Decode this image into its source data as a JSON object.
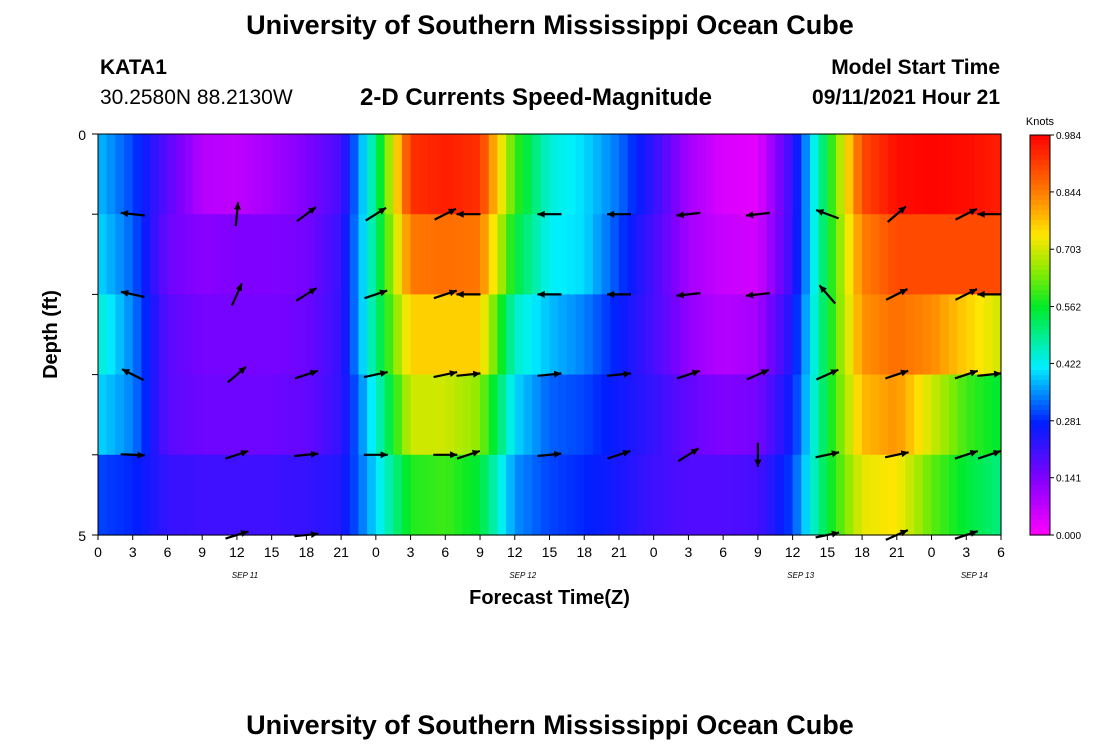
{
  "header": {
    "title": "University of Southern Mississippi Ocean Cube",
    "station": "KATA1",
    "coords": "30.2580N  88.2130W",
    "subtitle": "2-D Currents Speed-Magnitude",
    "model_label": "Model Start Time",
    "model_time": "09/11/2021 Hour 21",
    "footer_title": "University of Southern Mississippi Ocean Cube"
  },
  "chart_data": {
    "type": "heatmap",
    "title": "2-D Currents Speed-Magnitude",
    "xlabel": "Forecast Time(Z)",
    "ylabel": "Depth (ft)",
    "x_unit": "hours from Sep 11 00Z",
    "xlim": [
      0,
      78
    ],
    "ylim": [
      0,
      5
    ],
    "y_tick_labels": [
      {
        "label": "0",
        "depth": 0
      },
      {
        "label": "5",
        "depth": 5
      }
    ],
    "x_tick_labels": [
      "0",
      "3",
      "6",
      "9",
      "12",
      "15",
      "18",
      "21",
      "0",
      "3",
      "6",
      "9",
      "12",
      "15",
      "18",
      "21",
      "0",
      "3",
      "6",
      "9",
      "12",
      "15",
      "18",
      "21",
      "0",
      "3",
      "6"
    ],
    "x_date_labels": [
      {
        "label": "SEP 11",
        "hour": 12
      },
      {
        "label": "SEP 12",
        "hour": 36
      },
      {
        "label": "SEP 13",
        "hour": 60
      },
      {
        "label": "SEP 14",
        "hour": 75
      }
    ],
    "colorbar": {
      "unit": "Knots",
      "min": 0.0,
      "max": 0.984,
      "ticks": [
        "0.984",
        "0.844",
        "0.703",
        "0.562",
        "0.422",
        "0.281",
        "0.141",
        "0.000"
      ]
    },
    "x_hours": [
      0,
      3,
      6,
      9,
      12,
      15,
      18,
      21,
      24,
      27,
      30,
      33,
      36,
      39,
      42,
      45,
      48,
      51,
      54,
      57,
      60,
      63,
      66,
      69,
      72,
      75,
      78
    ],
    "depth_rows": [
      0.5,
      1.5,
      2.5,
      3.5,
      4.5
    ],
    "speed_knots": [
      [
        0.38,
        0.3,
        0.18,
        0.08,
        0.07,
        0.1,
        0.14,
        0.2,
        0.5,
        0.93,
        0.95,
        0.93,
        0.6,
        0.44,
        0.4,
        0.33,
        0.22,
        0.1,
        0.04,
        0.03,
        0.22,
        0.55,
        0.9,
        0.97,
        0.98,
        0.97,
        0.95
      ],
      [
        0.4,
        0.32,
        0.16,
        0.13,
        0.14,
        0.14,
        0.15,
        0.22,
        0.5,
        0.85,
        0.86,
        0.85,
        0.55,
        0.42,
        0.4,
        0.3,
        0.2,
        0.1,
        0.06,
        0.05,
        0.22,
        0.55,
        0.84,
        0.9,
        0.9,
        0.9,
        0.9
      ],
      [
        0.45,
        0.34,
        0.18,
        0.15,
        0.15,
        0.15,
        0.16,
        0.22,
        0.5,
        0.76,
        0.76,
        0.76,
        0.45,
        0.38,
        0.34,
        0.27,
        0.2,
        0.12,
        0.08,
        0.1,
        0.25,
        0.55,
        0.82,
        0.86,
        0.83,
        0.76,
        0.7
      ],
      [
        0.4,
        0.34,
        0.18,
        0.16,
        0.16,
        0.16,
        0.17,
        0.22,
        0.44,
        0.7,
        0.7,
        0.65,
        0.4,
        0.32,
        0.3,
        0.26,
        0.22,
        0.17,
        0.14,
        0.15,
        0.27,
        0.55,
        0.78,
        0.82,
        0.7,
        0.6,
        0.55
      ],
      [
        0.3,
        0.28,
        0.22,
        0.21,
        0.21,
        0.21,
        0.22,
        0.24,
        0.4,
        0.58,
        0.6,
        0.55,
        0.35,
        0.3,
        0.28,
        0.25,
        0.21,
        0.19,
        0.19,
        0.2,
        0.3,
        0.55,
        0.72,
        0.74,
        0.62,
        0.55,
        0.5
      ]
    ],
    "vectors": [
      {
        "hour": 3,
        "depth": 1,
        "u": -0.9,
        "v": 0.1
      },
      {
        "hour": 12,
        "depth": 1,
        "u": 0.1,
        "v": 1.0
      },
      {
        "hour": 18,
        "depth": 1,
        "u": 0.8,
        "v": 0.6
      },
      {
        "hour": 24,
        "depth": 1,
        "u": 0.8,
        "v": 0.5
      },
      {
        "hour": 30,
        "depth": 1,
        "u": 0.8,
        "v": 0.4
      },
      {
        "hour": 32,
        "depth": 1,
        "u": -1.0,
        "v": 0.0
      },
      {
        "hour": 39,
        "depth": 1,
        "u": -1.0,
        "v": 0.0
      },
      {
        "hour": 45,
        "depth": 1,
        "u": -1.0,
        "v": 0.0
      },
      {
        "hour": 51,
        "depth": 1,
        "u": -0.95,
        "v": -0.1
      },
      {
        "hour": 57,
        "depth": 1,
        "u": -0.95,
        "v": -0.1
      },
      {
        "hour": 63,
        "depth": 1,
        "u": -0.8,
        "v": 0.3
      },
      {
        "hour": 69,
        "depth": 1,
        "u": 0.7,
        "v": 0.6
      },
      {
        "hour": 75,
        "depth": 1,
        "u": 0.8,
        "v": 0.4
      },
      {
        "hour": 77,
        "depth": 1,
        "u": -1.0,
        "v": 0.0
      },
      {
        "hour": 3,
        "depth": 2,
        "u": -0.9,
        "v": 0.2
      },
      {
        "hour": 12,
        "depth": 2,
        "u": 0.4,
        "v": 0.9
      },
      {
        "hour": 18,
        "depth": 2,
        "u": 0.8,
        "v": 0.5
      },
      {
        "hour": 24,
        "depth": 2,
        "u": 0.9,
        "v": 0.3
      },
      {
        "hour": 30,
        "depth": 2,
        "u": 0.9,
        "v": 0.3
      },
      {
        "hour": 32,
        "depth": 2,
        "u": -1.0,
        "v": 0.0
      },
      {
        "hour": 39,
        "depth": 2,
        "u": -1.0,
        "v": 0.0
      },
      {
        "hour": 45,
        "depth": 2,
        "u": -1.0,
        "v": 0.0
      },
      {
        "hour": 51,
        "depth": 2,
        "u": -0.95,
        "v": -0.1
      },
      {
        "hour": 57,
        "depth": 2,
        "u": -0.95,
        "v": -0.1
      },
      {
        "hour": 63,
        "depth": 2,
        "u": -0.6,
        "v": 0.7
      },
      {
        "hour": 69,
        "depth": 2,
        "u": 0.8,
        "v": 0.4
      },
      {
        "hour": 75,
        "depth": 2,
        "u": 0.8,
        "v": 0.4
      },
      {
        "hour": 77,
        "depth": 2,
        "u": -1.0,
        "v": 0.0
      },
      {
        "hour": 3,
        "depth": 3,
        "u": -0.8,
        "v": 0.4
      },
      {
        "hour": 12,
        "depth": 3,
        "u": 0.7,
        "v": 0.6
      },
      {
        "hour": 18,
        "depth": 3,
        "u": 0.9,
        "v": 0.3
      },
      {
        "hour": 24,
        "depth": 3,
        "u": 0.95,
        "v": 0.2
      },
      {
        "hour": 30,
        "depth": 3,
        "u": 0.95,
        "v": 0.2
      },
      {
        "hour": 32,
        "depth": 3,
        "u": 1.0,
        "v": 0.1
      },
      {
        "hour": 39,
        "depth": 3,
        "u": 1.0,
        "v": 0.1
      },
      {
        "hour": 45,
        "depth": 3,
        "u": 1.0,
        "v": 0.1
      },
      {
        "hour": 51,
        "depth": 3,
        "u": 0.9,
        "v": 0.3
      },
      {
        "hour": 57,
        "depth": 3,
        "u": 0.9,
        "v": 0.4
      },
      {
        "hour": 63,
        "depth": 3,
        "u": 0.9,
        "v": 0.4
      },
      {
        "hour": 69,
        "depth": 3,
        "u": 0.9,
        "v": 0.3
      },
      {
        "hour": 75,
        "depth": 3,
        "u": 0.9,
        "v": 0.3
      },
      {
        "hour": 77,
        "depth": 3,
        "u": 0.95,
        "v": 0.1
      },
      {
        "hour": 3,
        "depth": 4,
        "u": 1.0,
        "v": -0.05
      },
      {
        "hour": 12,
        "depth": 4,
        "u": 0.9,
        "v": 0.3
      },
      {
        "hour": 18,
        "depth": 4,
        "u": 1.0,
        "v": 0.1
      },
      {
        "hour": 24,
        "depth": 4,
        "u": 1.0,
        "v": 0.0
      },
      {
        "hour": 30,
        "depth": 4,
        "u": 1.0,
        "v": 0.0
      },
      {
        "hour": 32,
        "depth": 4,
        "u": 0.9,
        "v": 0.3
      },
      {
        "hour": 39,
        "depth": 4,
        "u": 1.0,
        "v": 0.1
      },
      {
        "hour": 45,
        "depth": 4,
        "u": 0.9,
        "v": 0.3
      },
      {
        "hour": 51,
        "depth": 4,
        "u": 0.8,
        "v": 0.5
      },
      {
        "hour": 57,
        "depth": 4,
        "u": 0.0,
        "v": -1.0
      },
      {
        "hour": 63,
        "depth": 4,
        "u": 0.95,
        "v": 0.2
      },
      {
        "hour": 69,
        "depth": 4,
        "u": 0.95,
        "v": 0.2
      },
      {
        "hour": 75,
        "depth": 4,
        "u": 0.9,
        "v": 0.3
      },
      {
        "hour": 77,
        "depth": 4,
        "u": 0.9,
        "v": 0.3
      },
      {
        "hour": 12,
        "depth": 5,
        "u": 0.95,
        "v": 0.3
      },
      {
        "hour": 18,
        "depth": 5,
        "u": 1.0,
        "v": 0.1
      },
      {
        "hour": 63,
        "depth": 5,
        "u": 1.0,
        "v": 0.2
      },
      {
        "hour": 69,
        "depth": 5,
        "u": 0.9,
        "v": 0.4
      },
      {
        "hour": 75,
        "depth": 5,
        "u": 0.9,
        "v": 0.3
      }
    ]
  }
}
